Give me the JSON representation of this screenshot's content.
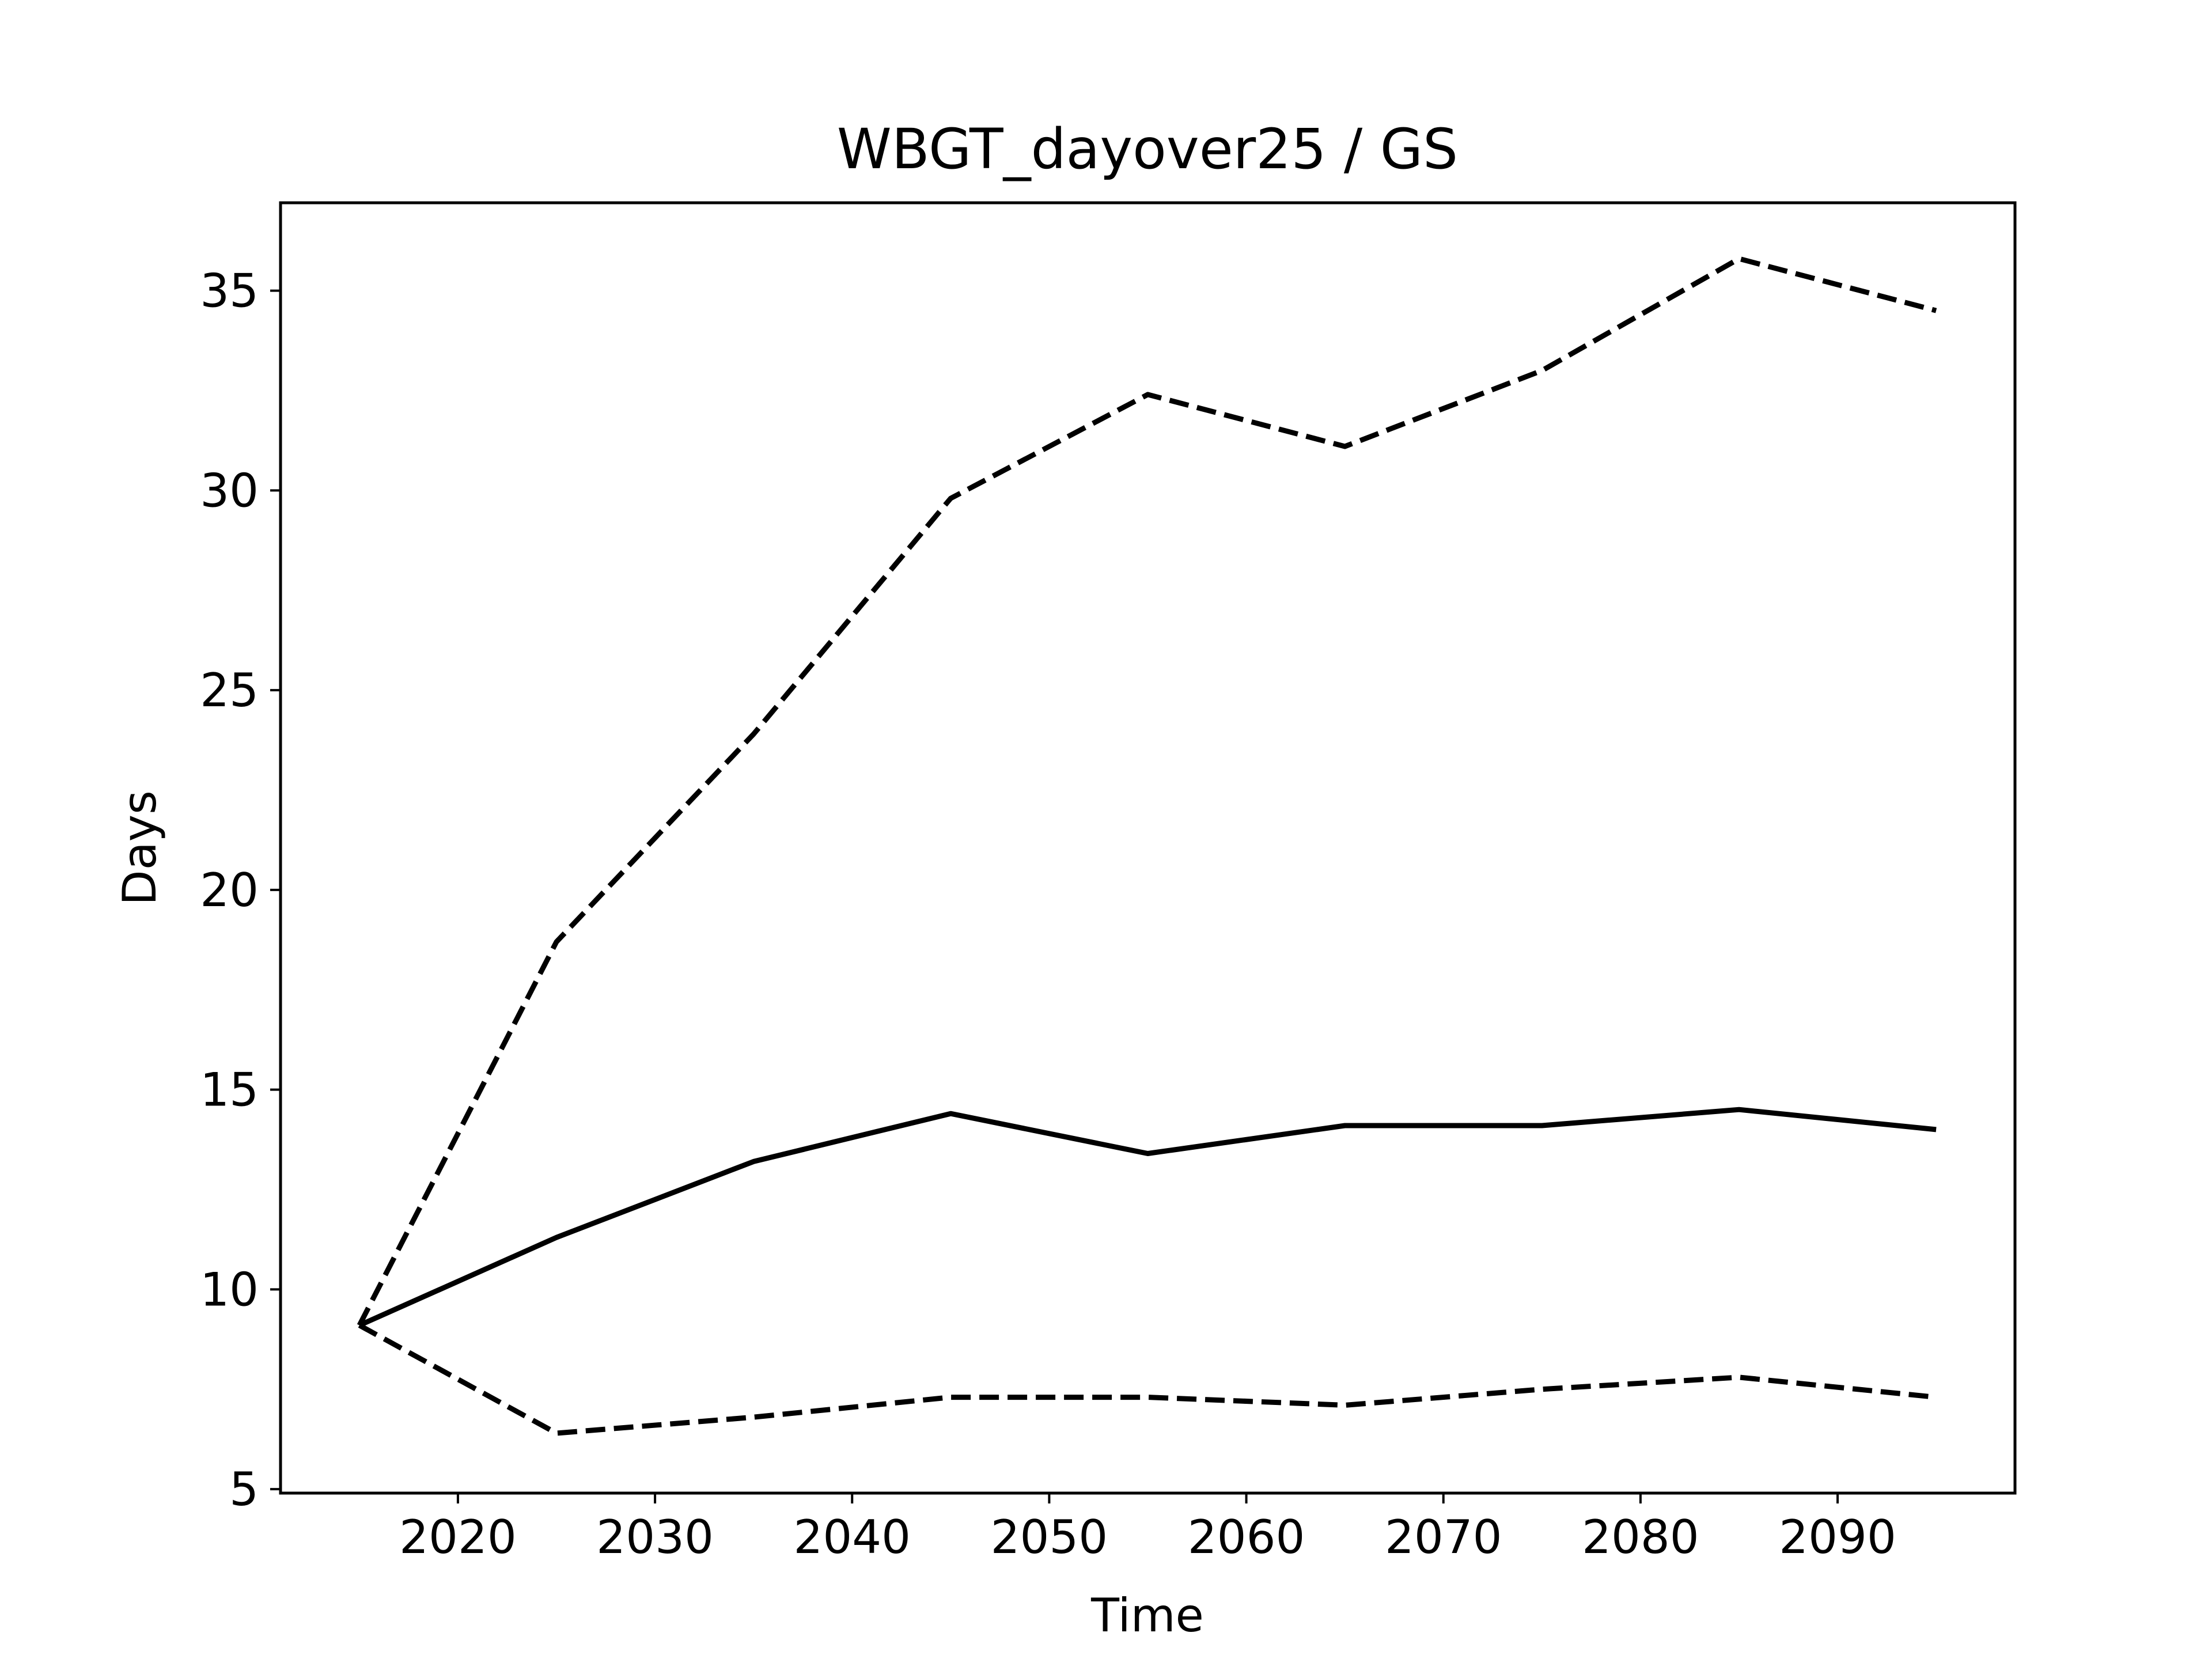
{
  "chart_data": {
    "type": "line",
    "title": "WBGT_dayover25 / GS",
    "xlabel": "Time",
    "ylabel": "Days",
    "xlim": [
      2011,
      2099
    ],
    "ylim": [
      4.9,
      37.2
    ],
    "xticks": [
      2020,
      2030,
      2040,
      2050,
      2060,
      2070,
      2080,
      2090
    ],
    "yticks": [
      5,
      10,
      15,
      20,
      25,
      30,
      35
    ],
    "grid": false,
    "legend": "none",
    "x": [
      2015,
      2025,
      2035,
      2045,
      2055,
      2065,
      2075,
      2085,
      2095
    ],
    "series": [
      {
        "style": "solid",
        "color": "#000000",
        "values": [
          9.1,
          11.3,
          13.2,
          14.4,
          13.4,
          14.1,
          14.1,
          14.5,
          14.0
        ]
      },
      {
        "style": "dashed",
        "color": "#000000",
        "values": [
          9.1,
          18.7,
          23.9,
          29.8,
          32.4,
          31.1,
          33.0,
          35.8,
          34.5
        ]
      },
      {
        "style": "dashed",
        "color": "#000000",
        "values": [
          9.1,
          6.4,
          6.8,
          7.3,
          7.3,
          7.1,
          7.5,
          7.8,
          7.3
        ]
      }
    ]
  }
}
